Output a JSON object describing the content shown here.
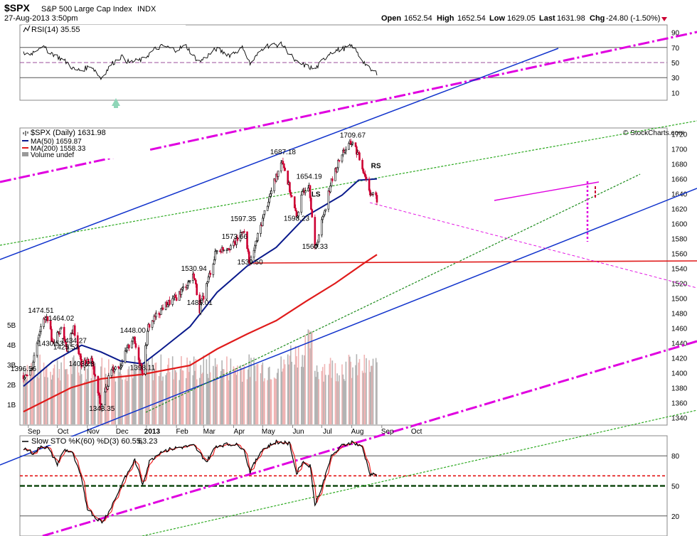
{
  "header": {
    "symbol": "$SPX",
    "name": "S&P 500 Large Cap Index",
    "exchange": "INDX",
    "datetime": "27-Aug-2013 3:50pm",
    "open_label": "Open",
    "open": "1652.54",
    "high_label": "High",
    "high": "1652.54",
    "low_label": "Low",
    "low": "1629.05",
    "last_label": "Last",
    "last": "1631.98",
    "chg_label": "Chg",
    "chg": "-24.80 (-1.50%)",
    "watermark": "© StockCharts.com"
  },
  "colors": {
    "price_up": "#000000",
    "price_down": "#cc0033",
    "ma50": "#0a1a8c",
    "ma200": "#e01b1b",
    "volume_up": "#b3b3b3",
    "volume_down": "#f0b4b4",
    "trend_magenta": "#e000e0",
    "trend_blue": "#1133cc",
    "trend_green": "#2eaa22",
    "stoch_k": "#000000",
    "stoch_d": "#ee2222"
  },
  "chart_data": [
    {
      "type": "line",
      "panel": "rsi",
      "legend": "RSI(14) 35.55",
      "ylim": [
        0,
        100
      ],
      "yticks": [
        10,
        30,
        50,
        70,
        90
      ],
      "reference_lines": [
        30,
        50,
        70
      ],
      "x": [
        "2012-09-04",
        "2012-09-14",
        "2012-09-21",
        "2012-10-01",
        "2012-10-11",
        "2012-10-19",
        "2012-10-26",
        "2012-11-05",
        "2012-11-15",
        "2012-11-26",
        "2012-12-06",
        "2012-12-14",
        "2012-12-28",
        "2013-01-10",
        "2013-01-18",
        "2013-01-31",
        "2013-02-11",
        "2013-02-19",
        "2013-02-25",
        "2013-03-14",
        "2013-03-28",
        "2013-04-11",
        "2013-04-18",
        "2013-05-03",
        "2013-05-21",
        "2013-06-05",
        "2013-06-24",
        "2013-07-10",
        "2013-07-22",
        "2013-08-02",
        "2013-08-08",
        "2013-08-20",
        "2013-08-27"
      ],
      "values": [
        62,
        72,
        66,
        58,
        50,
        40,
        40,
        46,
        29,
        48,
        58,
        50,
        54,
        68,
        72,
        67,
        72,
        58,
        51,
        68,
        60,
        70,
        48,
        72,
        74,
        50,
        41,
        64,
        68,
        72,
        60,
        40,
        36
      ]
    },
    {
      "type": "candlestick",
      "panel": "price",
      "title": "$SPX (Daily) 1631.98",
      "legend": [
        "MA(50) 1659.87",
        "MA(200) 1558.33",
        "Volume undef"
      ],
      "ylim": [
        1330,
        1728
      ],
      "yticks": [
        1340,
        1360,
        1380,
        1400,
        1420,
        1440,
        1460,
        1480,
        1500,
        1520,
        1540,
        1560,
        1580,
        1600,
        1620,
        1640,
        1660,
        1680,
        1700,
        1720
      ],
      "volume_ticks": [
        "1B",
        "2B",
        "3B",
        "4B",
        "5B"
      ],
      "x_labels": [
        "Sep",
        "Oct",
        "Nov",
        "Dec",
        "2013",
        "Feb",
        "Mar",
        "Apr",
        "May",
        "Jun",
        "Jul",
        "Aug",
        "Sep",
        "Oct"
      ],
      "close_path_x": [
        "2012-08-27",
        "2012-09-04",
        "2012-09-14",
        "2012-09-21",
        "2012-09-26",
        "2012-10-05",
        "2012-10-11",
        "2012-10-18",
        "2012-10-26",
        "2012-11-05",
        "2012-11-15",
        "2012-11-26",
        "2012-12-05",
        "2012-12-18",
        "2012-12-28",
        "2013-01-03",
        "2013-01-18",
        "2013-01-31",
        "2013-02-11",
        "2013-02-19",
        "2013-02-25",
        "2013-03-14",
        "2013-04-02",
        "2013-04-11",
        "2013-04-18",
        "2013-05-03",
        "2013-05-21",
        "2013-06-05",
        "2013-06-12",
        "2013-06-18",
        "2013-06-24",
        "2013-07-10",
        "2013-07-22",
        "2013-08-02",
        "2013-08-08",
        "2013-08-15",
        "2013-08-20",
        "2013-08-27"
      ],
      "close_path": [
        1396.56,
        1404,
        1465,
        1474.51,
        1440,
        1460,
        1432,
        1460,
        1410,
        1418,
        1353,
        1406,
        1410,
        1448,
        1402,
        1462,
        1488,
        1500,
        1518,
        1530.94,
        1485.01,
        1563,
        1572,
        1593,
        1546,
        1615,
        1687.18,
        1608,
        1644,
        1654.19,
        1563,
        1652,
        1695,
        1709.67,
        1690,
        1664,
        1642,
        1631.98
      ],
      "ma50_x": [
        "2012-08-27",
        "2012-09-26",
        "2012-10-26",
        "2012-11-15",
        "2012-12-05",
        "2012-12-28",
        "2013-01-15",
        "2013-02-15",
        "2013-03-15",
        "2013-04-15",
        "2013-05-15",
        "2013-06-15",
        "2013-07-01",
        "2013-07-22",
        "2013-08-08",
        "2013-08-27"
      ],
      "ma50": [
        1382,
        1415,
        1437,
        1428,
        1416,
        1412,
        1430,
        1462,
        1508,
        1543,
        1568,
        1610,
        1622,
        1638,
        1658,
        1659.87
      ],
      "ma200_x": [
        "2012-08-27",
        "2012-10-15",
        "2012-11-15",
        "2012-12-28",
        "2013-02-15",
        "2013-03-15",
        "2013-04-15",
        "2013-05-15",
        "2013-06-15",
        "2013-07-15",
        "2013-08-15",
        "2013-08-27"
      ],
      "ma200": [
        1348,
        1380,
        1392,
        1398,
        1410,
        1432,
        1452,
        1470,
        1496,
        1520,
        1548,
        1558.33
      ],
      "annotations": [
        {
          "label": "1396.56",
          "x": "2012-08-27",
          "y": 1396.56
        },
        {
          "label": "1474.51",
          "x": "2012-09-14",
          "y": 1474.51
        },
        {
          "label": "1430.53",
          "x": "2012-09-24",
          "y": 1430.53
        },
        {
          "label": "1464.02",
          "x": "2012-10-05",
          "y": 1464.02
        },
        {
          "label": "1425.53",
          "x": "2012-10-10",
          "y": 1425.53
        },
        {
          "label": "1434.27",
          "x": "2012-10-18",
          "y": 1434.27
        },
        {
          "label": "1403.28",
          "x": "2012-10-26",
          "y": 1403.28
        },
        {
          "label": "1343.35",
          "x": "2012-11-16",
          "y": 1343.35
        },
        {
          "label": "1448.00",
          "x": "2012-12-18",
          "y": 1448.0
        },
        {
          "label": "1398.11",
          "x": "2012-12-28",
          "y": 1398.11
        },
        {
          "label": "1530.94",
          "x": "2013-02-19",
          "y": 1530.94
        },
        {
          "label": "1485.01",
          "x": "2013-02-25",
          "y": 1485.01
        },
        {
          "label": "1573.66",
          "x": "2013-04-02",
          "y": 1573.66
        },
        {
          "label": "1597.35",
          "x": "2013-04-11",
          "y": 1597.35
        },
        {
          "label": "1539.50",
          "x": "2013-04-18",
          "y": 1539.5
        },
        {
          "label": "1687.18",
          "x": "2013-05-22",
          "y": 1687.18
        },
        {
          "label": "1598.23",
          "x": "2013-06-05",
          "y": 1598.23
        },
        {
          "label": "1654.19",
          "x": "2013-06-18",
          "y": 1654.19
        },
        {
          "label": "1560.33",
          "x": "2013-06-24",
          "y": 1560.33
        },
        {
          "label": "1709.67",
          "x": "2013-08-02",
          "y": 1709.67
        },
        {
          "label": "LS",
          "x": "2013-06-25",
          "y": 1636
        },
        {
          "label": "RS",
          "x": "2013-08-26",
          "y": 1674
        }
      ],
      "horizontal_line": 1539
    },
    {
      "type": "line",
      "panel": "stochastic",
      "legend_k": "Slow STO %K(60) %D(3) 60.55,",
      "legend_d": "63.23",
      "ylim": [
        0,
        100
      ],
      "yticks": [
        20,
        50,
        80
      ],
      "reference_lines": [
        20,
        50,
        60,
        80
      ],
      "x": [
        "2012-08-27",
        "2012-09-07",
        "2012-09-14",
        "2012-09-21",
        "2012-10-01",
        "2012-10-08",
        "2012-10-16",
        "2012-10-25",
        "2012-11-01",
        "2012-11-08",
        "2012-11-16",
        "2012-11-23",
        "2012-12-03",
        "2012-12-10",
        "2012-12-20",
        "2012-12-28",
        "2013-01-04",
        "2013-01-15",
        "2013-02-01",
        "2013-02-19",
        "2013-03-04",
        "2013-03-14",
        "2013-04-01",
        "2013-04-11",
        "2013-04-18",
        "2013-04-30",
        "2013-05-15",
        "2013-05-29",
        "2013-06-05",
        "2013-06-11",
        "2013-06-19",
        "2013-06-24",
        "2013-07-01",
        "2013-07-10",
        "2013-07-22",
        "2013-08-02",
        "2013-08-12",
        "2013-08-20",
        "2013-08-27"
      ],
      "values": [
        88,
        82,
        90,
        88,
        72,
        86,
        84,
        60,
        28,
        20,
        14,
        24,
        44,
        58,
        76,
        52,
        74,
        84,
        88,
        90,
        74,
        90,
        92,
        88,
        64,
        86,
        94,
        92,
        62,
        74,
        70,
        32,
        48,
        78,
        90,
        94,
        88,
        62,
        60.55
      ]
    }
  ]
}
